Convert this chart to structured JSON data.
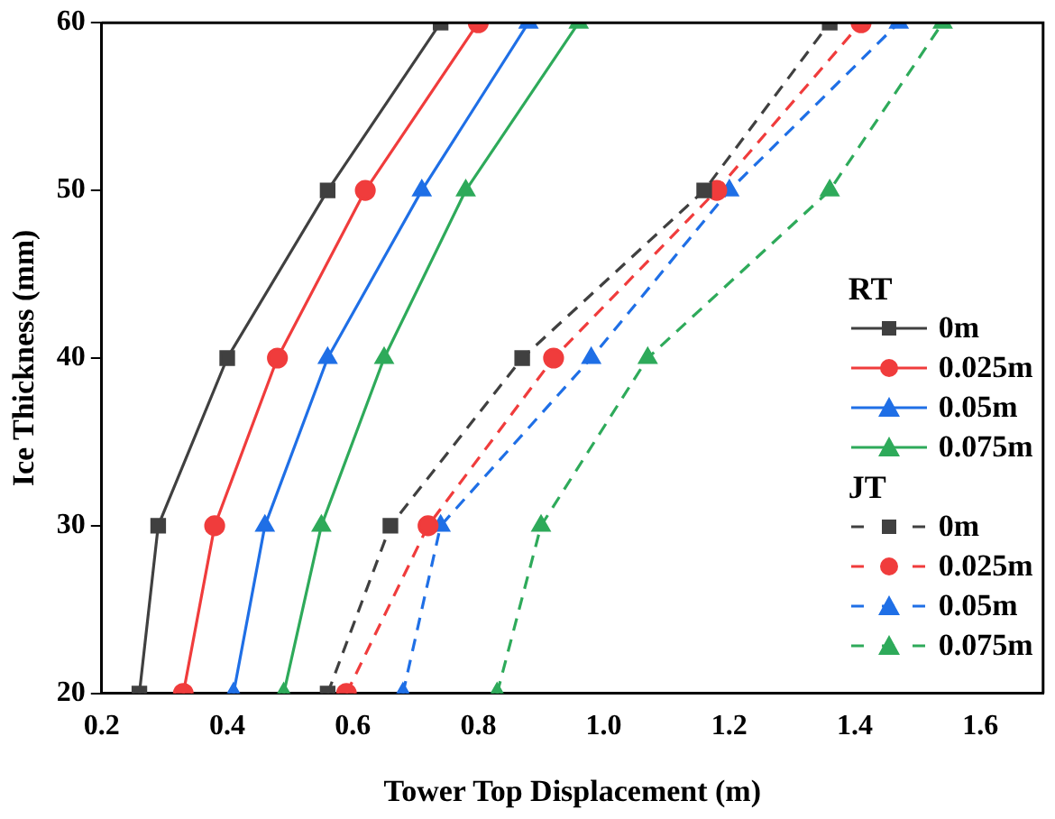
{
  "chart_data": {
    "type": "line",
    "xlabel": "Tower Top Displacement (m)",
    "ylabel": "Ice Thickness (mm)",
    "xlim": [
      0.2,
      1.7
    ],
    "xticks": [
      0.2,
      {
        "value": 0.4,
        "label": "0.4"
      },
      {
        "value": 0.6,
        "label": "0.6"
      },
      {
        "value": 0.8,
        "label": "0.8"
      },
      {
        "value": 1.0,
        "label": "1.0"
      },
      {
        "value": 1.2,
        "label": "1.2"
      },
      {
        "value": 1.4,
        "label": "1.4"
      },
      {
        "value": 1.6,
        "label": "1.6"
      }
    ],
    "ylim": [
      20,
      60
    ],
    "yticks": [
      20,
      30,
      40,
      50,
      60
    ],
    "grid": false,
    "legend": "right",
    "annotations": [
      "RT",
      "JT"
    ],
    "series": [
      {
        "name": "0m",
        "color": "#404040",
        "marker": "square",
        "line_style": "solid",
        "x": [
          0.26,
          0.29,
          0.4,
          0.56,
          0.74
        ],
        "values": [
          20,
          30,
          40,
          50,
          60
        ]
      },
      {
        "name": "0.025m",
        "color": "#f03c3c",
        "marker": "circle",
        "line_style": "solid",
        "x": [
          0.33,
          0.38,
          0.48,
          0.62,
          0.8
        ],
        "values": [
          20,
          30,
          40,
          50,
          60
        ]
      },
      {
        "name": "0.05m",
        "color": "#1f6fe6",
        "marker": "triangle",
        "line_style": "solid",
        "x": [
          0.41,
          0.46,
          0.56,
          0.71,
          0.88
        ],
        "values": [
          20,
          30,
          40,
          50,
          60
        ]
      },
      {
        "name": "0.075m",
        "color": "#2eaa5a",
        "marker": "triangle",
        "line_style": "solid",
        "x": [
          0.49,
          0.55,
          0.65,
          0.78,
          0.96
        ],
        "values": [
          20,
          30,
          40,
          50,
          60
        ]
      },
      {
        "name": "0m",
        "color": "#404040",
        "marker": "square",
        "line_style": "dashed",
        "x": [
          0.56,
          0.66,
          0.87,
          1.16,
          1.36
        ],
        "values": [
          20,
          30,
          40,
          50,
          60
        ]
      },
      {
        "name": "0.025m",
        "color": "#f03c3c",
        "marker": "circle",
        "line_style": "dashed",
        "x": [
          0.59,
          0.72,
          0.92,
          1.18,
          1.41
        ],
        "values": [
          20,
          30,
          40,
          50,
          60
        ]
      },
      {
        "name": "0.05m",
        "color": "#1f6fe6",
        "marker": "triangle",
        "line_style": "dashed",
        "x": [
          0.68,
          0.74,
          0.98,
          1.2,
          1.47
        ],
        "values": [
          20,
          30,
          40,
          50,
          60
        ]
      },
      {
        "name": "0.075m",
        "color": "#2eaa5a",
        "marker": "triangle",
        "line_style": "dashed",
        "x": [
          0.83,
          0.9,
          1.07,
          1.36,
          1.54
        ],
        "values": [
          20,
          30,
          40,
          50,
          60
        ]
      }
    ]
  }
}
